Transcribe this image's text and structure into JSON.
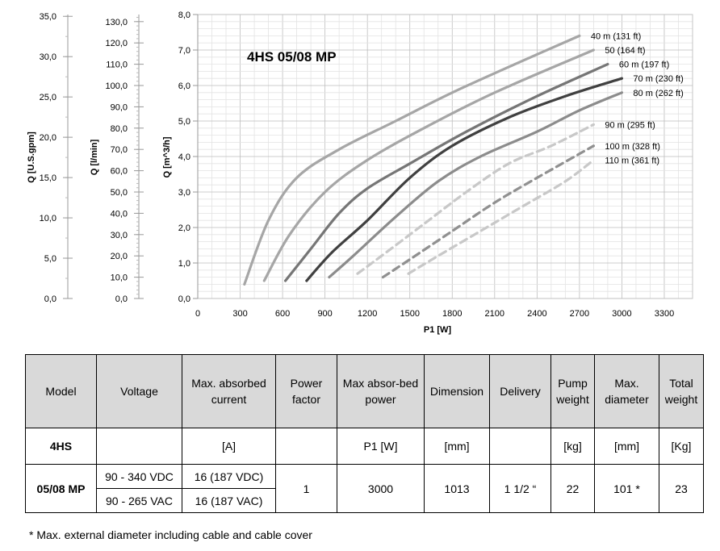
{
  "chart_data": {
    "type": "line",
    "title": "4HS 05/08 MP",
    "xlabel": "P1 [W]",
    "ylabel": "Q [m^3/h]",
    "xlim": [
      0,
      3500
    ],
    "ylim": [
      0,
      8
    ],
    "x_ticks": [
      "0",
      "300",
      "600",
      "900",
      "1200",
      "1500",
      "1800",
      "2100",
      "2400",
      "2700",
      "3000",
      "3300"
    ],
    "y_ticks": [
      "0,0",
      "1,0",
      "2,0",
      "3,0",
      "4,0",
      "5,0",
      "6,0",
      "7,0",
      "8,0"
    ],
    "secondary_axes": [
      {
        "label": "Q [U.S.gpm]",
        "ticks": [
          "0,0",
          "5,0",
          "10,0",
          "15,0",
          "20,0",
          "25,0",
          "30,0",
          "35,0"
        ]
      },
      {
        "label": "Q [l/min]",
        "ticks": [
          "0,0",
          "10,0",
          "20,0",
          "30,0",
          "40,0",
          "50,0",
          "60,0",
          "70,0",
          "80,0",
          "90,0",
          "100,0",
          "110,0",
          "120,0",
          "130,0"
        ]
      }
    ],
    "grid": true,
    "series": [
      {
        "name": "40 m (131 ft)",
        "color": "#a6a6a6",
        "style": "solid",
        "points": [
          [
            330,
            0.4
          ],
          [
            500,
            2.2
          ],
          [
            700,
            3.4
          ],
          [
            1000,
            4.2
          ],
          [
            1400,
            5.0
          ],
          [
            1800,
            5.8
          ],
          [
            2300,
            6.7
          ],
          [
            2700,
            7.4
          ]
        ]
      },
      {
        "name": "50 (164 ft)",
        "color": "#a6a6a6",
        "style": "solid",
        "points": [
          [
            470,
            0.5
          ],
          [
            650,
            1.8
          ],
          [
            900,
            3.0
          ],
          [
            1200,
            3.9
          ],
          [
            1600,
            4.8
          ],
          [
            2100,
            5.8
          ],
          [
            2800,
            7.0
          ]
        ]
      },
      {
        "name": "60 m (197 ft)",
        "color": "#767676",
        "style": "solid",
        "points": [
          [
            620,
            0.5
          ],
          [
            800,
            1.4
          ],
          [
            1000,
            2.4
          ],
          [
            1200,
            3.1
          ],
          [
            1500,
            3.8
          ],
          [
            1900,
            4.7
          ],
          [
            2400,
            5.7
          ],
          [
            2900,
            6.6
          ]
        ]
      },
      {
        "name": "70 m (230 ft)",
        "color": "#404040",
        "style": "solid",
        "points": [
          [
            770,
            0.5
          ],
          [
            950,
            1.3
          ],
          [
            1200,
            2.2
          ],
          [
            1500,
            3.4
          ],
          [
            1800,
            4.3
          ],
          [
            2200,
            5.1
          ],
          [
            2600,
            5.7
          ],
          [
            3000,
            6.2
          ]
        ]
      },
      {
        "name": "80 m (262 ft)",
        "color": "#8c8c8c",
        "style": "solid",
        "points": [
          [
            930,
            0.6
          ],
          [
            1100,
            1.2
          ],
          [
            1400,
            2.3
          ],
          [
            1700,
            3.3
          ],
          [
            2000,
            4.0
          ],
          [
            2400,
            4.7
          ],
          [
            2700,
            5.3
          ],
          [
            3000,
            5.8
          ]
        ]
      },
      {
        "name": "90 m (295 ft)",
        "color": "#c8c8c8",
        "style": "dashed",
        "points": [
          [
            1130,
            0.7
          ],
          [
            1300,
            1.2
          ],
          [
            1600,
            2.1
          ],
          [
            1900,
            3.0
          ],
          [
            2200,
            3.8
          ],
          [
            2500,
            4.3
          ],
          [
            2800,
            4.9
          ]
        ]
      },
      {
        "name": "100 m (328 ft)",
        "color": "#909090",
        "style": "dashed",
        "points": [
          [
            1310,
            0.6
          ],
          [
            1500,
            1.1
          ],
          [
            1800,
            1.9
          ],
          [
            2100,
            2.7
          ],
          [
            2400,
            3.4
          ],
          [
            2800,
            4.3
          ]
        ]
      },
      {
        "name": "110 m (361 ft)",
        "color": "#c8c8c8",
        "style": "dashed",
        "points": [
          [
            1490,
            0.7
          ],
          [
            1700,
            1.2
          ],
          [
            2000,
            1.9
          ],
          [
            2300,
            2.6
          ],
          [
            2600,
            3.3
          ],
          [
            2800,
            3.9
          ]
        ]
      }
    ]
  },
  "table": {
    "headers": [
      "Model",
      "Voltage",
      "Max. absorbed current",
      "Power factor",
      "Max absor-bed power",
      "Dimension",
      "Delivery",
      "Pump weight",
      "Max. diameter",
      "Total weight"
    ],
    "units": {
      "model": "4HS",
      "current": "[A]",
      "power": "P1 [W]",
      "dimension": "[mm]",
      "pump_weight": "[kg]",
      "diameter": "[mm]",
      "total_weight": "[Kg]"
    },
    "row": {
      "model": "05/08 MP",
      "voltage_dc": "90 - 340 VDC",
      "voltage_ac": "90 - 265 VAC",
      "current_dc": "16 (187 VDC)",
      "current_ac": "16 (187 VAC)",
      "power_factor": "1",
      "power": "3000",
      "dimension": "1013",
      "delivery": "1 1/2 “",
      "pump_weight": "22",
      "diameter": "101 *",
      "total_weight": "23"
    }
  },
  "footnote": "* Max. external diameter including cable and cable cover"
}
